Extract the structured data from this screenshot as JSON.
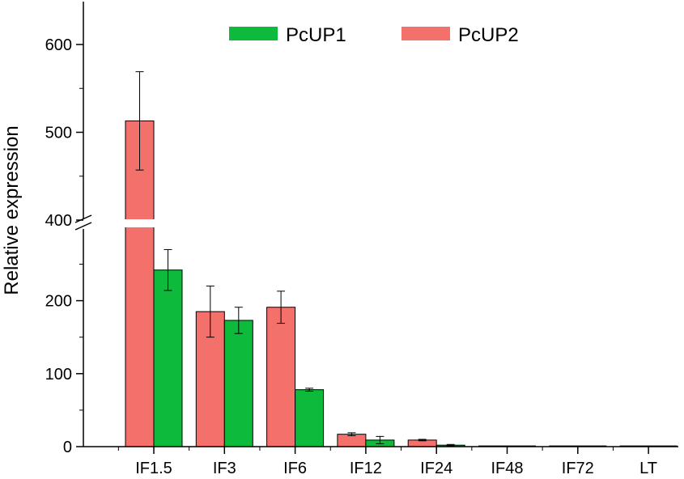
{
  "chart_data": {
    "type": "bar",
    "title": "",
    "xlabel": "",
    "ylabel": "Relative expression",
    "categories": [
      "IF1.5",
      "IF3",
      "IF6",
      "IF12",
      "IF24",
      "IF48",
      "IF72",
      "LT"
    ],
    "series": [
      {
        "name": "PcUP2",
        "color": "#F4716B",
        "values": [
          513,
          185,
          191,
          17,
          9,
          1,
          1,
          1
        ],
        "errors": [
          56,
          35,
          22,
          2,
          1,
          0,
          0,
          0
        ]
      },
      {
        "name": "PcUP1",
        "color": "#0DBA3B",
        "values": [
          242,
          173,
          78,
          9,
          2,
          1,
          1,
          1
        ],
        "errors": [
          28,
          18,
          2,
          5,
          1,
          0,
          0,
          0
        ]
      }
    ],
    "legend_order": [
      "PcUP1",
      "PcUP2"
    ],
    "legend_position": "top",
    "y_axis": {
      "broken": true,
      "lower_range": [
        0,
        275
      ],
      "upper_range": [
        400,
        650
      ],
      "ticks": [
        0,
        100,
        200,
        400,
        500,
        600
      ],
      "tick_labels": [
        "0",
        "100",
        "200",
        "400",
        "500",
        "600"
      ]
    },
    "grid": false
  }
}
